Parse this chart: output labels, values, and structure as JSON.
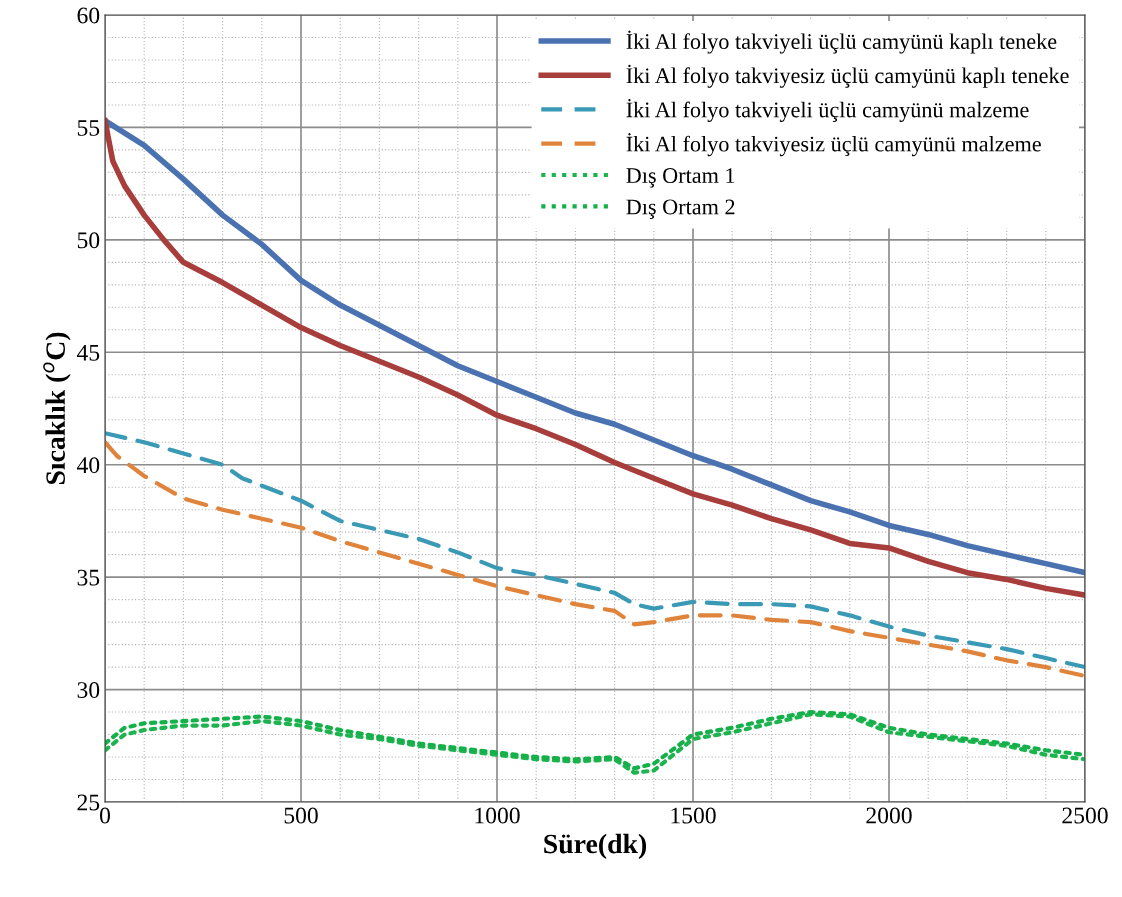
{
  "chart_data": {
    "type": "line",
    "xlabel": "Süre(dk)",
    "ylabel": "Sıcaklık ($^{o}$C)",
    "xlim": [
      0,
      2500
    ],
    "xticks": [
      0,
      500,
      1000,
      1500,
      2000,
      2500
    ],
    "ylim": [
      25,
      60
    ],
    "yticks": [
      25,
      30,
      35,
      40,
      45,
      50,
      55,
      60
    ],
    "grid": true,
    "legend": "top right",
    "marker": "none",
    "series": [
      {
        "name": "İki Al folyo takviyeli üçlü camyünü kaplı teneke",
        "color": "#4a72b0",
        "line_style": "solid",
        "x": [
          0,
          100,
          200,
          300,
          400,
          500,
          600,
          700,
          800,
          900,
          1000,
          1100,
          1200,
          1300,
          1400,
          1500,
          1600,
          1700,
          1800,
          1900,
          2000,
          2100,
          2200,
          2300,
          2400,
          2500
        ],
        "values": [
          55.3,
          54.2,
          52.7,
          51.1,
          49.8,
          48.2,
          47.1,
          46.2,
          45.3,
          44.4,
          43.7,
          43.0,
          42.3,
          41.8,
          41.1,
          40.4,
          39.8,
          39.1,
          38.4,
          37.9,
          37.3,
          36.9,
          36.4,
          36.0,
          35.6,
          35.2
        ]
      },
      {
        "name": "İki Al folyo takviyesiz üçlü camyünü kaplı teneke",
        "color": "#a83e3c",
        "line_style": "solid",
        "x": [
          0,
          20,
          50,
          100,
          150,
          200,
          300,
          400,
          500,
          600,
          700,
          800,
          900,
          1000,
          1100,
          1200,
          1300,
          1400,
          1500,
          1600,
          1700,
          1800,
          1900,
          2000,
          2100,
          2200,
          2300,
          2400,
          2500
        ],
        "values": [
          55.3,
          53.5,
          52.4,
          51.1,
          50.0,
          49.0,
          48.1,
          47.1,
          46.1,
          45.3,
          44.6,
          43.9,
          43.1,
          42.2,
          41.6,
          40.9,
          40.1,
          39.4,
          38.7,
          38.2,
          37.6,
          37.1,
          36.5,
          36.3,
          35.7,
          35.2,
          34.9,
          34.5,
          34.2
        ]
      },
      {
        "name": "İki Al folyo takviyeli üçlü camyünü malzeme",
        "color": "#3a9ab5",
        "line_style": "dashed",
        "x": [
          0,
          100,
          200,
          300,
          350,
          500,
          600,
          700,
          800,
          900,
          1000,
          1100,
          1200,
          1300,
          1350,
          1400,
          1500,
          1600,
          1700,
          1800,
          1900,
          2000,
          2100,
          2200,
          2300,
          2400,
          2500
        ],
        "values": [
          41.4,
          41.0,
          40.5,
          40.0,
          39.4,
          38.4,
          37.5,
          37.1,
          36.7,
          36.1,
          35.4,
          35.1,
          34.7,
          34.3,
          33.8,
          33.6,
          33.9,
          33.8,
          33.8,
          33.7,
          33.3,
          32.8,
          32.4,
          32.1,
          31.8,
          31.4,
          31.0
        ]
      },
      {
        "name": "İki Al folyo takviyesiz üçlü camyünü malzeme",
        "color": "#e0843c",
        "line_style": "dashed",
        "x": [
          0,
          30,
          100,
          200,
          300,
          400,
          500,
          600,
          700,
          800,
          900,
          1000,
          1100,
          1200,
          1300,
          1350,
          1400,
          1500,
          1600,
          1700,
          1800,
          1900,
          2000,
          2100,
          2200,
          2300,
          2400,
          2500
        ],
        "values": [
          41.0,
          40.4,
          39.5,
          38.5,
          38.0,
          37.6,
          37.2,
          36.6,
          36.1,
          35.6,
          35.1,
          34.6,
          34.2,
          33.8,
          33.5,
          32.9,
          33.0,
          33.3,
          33.3,
          33.1,
          33.0,
          32.6,
          32.3,
          32.0,
          31.7,
          31.3,
          31.0,
          30.6
        ]
      },
      {
        "name": "Dış Ortam 1",
        "color": "#1db34e",
        "line_style": "dotted",
        "x": [
          0,
          50,
          100,
          200,
          300,
          400,
          500,
          600,
          700,
          800,
          900,
          1000,
          1100,
          1200,
          1300,
          1350,
          1400,
          1500,
          1600,
          1700,
          1800,
          1900,
          2000,
          2100,
          2200,
          2300,
          2400,
          2500
        ],
        "values": [
          27.3,
          28.0,
          28.2,
          28.4,
          28.4,
          28.6,
          28.4,
          28.0,
          27.8,
          27.5,
          27.3,
          27.1,
          26.9,
          26.8,
          26.9,
          26.3,
          26.4,
          27.8,
          28.1,
          28.5,
          28.9,
          28.8,
          28.1,
          27.9,
          27.7,
          27.5,
          27.1,
          26.9
        ]
      },
      {
        "name": "Dış Ortam 2",
        "color": "#14b04a",
        "line_style": "dotted",
        "x": [
          0,
          50,
          100,
          200,
          300,
          400,
          500,
          600,
          700,
          800,
          900,
          1000,
          1100,
          1200,
          1300,
          1350,
          1400,
          1500,
          1600,
          1700,
          1800,
          1900,
          2000,
          2100,
          2200,
          2300,
          2400,
          2500
        ],
        "values": [
          27.6,
          28.3,
          28.5,
          28.6,
          28.7,
          28.8,
          28.6,
          28.2,
          27.9,
          27.6,
          27.4,
          27.2,
          27.0,
          26.9,
          27.0,
          26.5,
          26.7,
          28.0,
          28.3,
          28.7,
          29.0,
          28.9,
          28.3,
          28.0,
          27.8,
          27.6,
          27.3,
          27.1
        ]
      }
    ]
  }
}
